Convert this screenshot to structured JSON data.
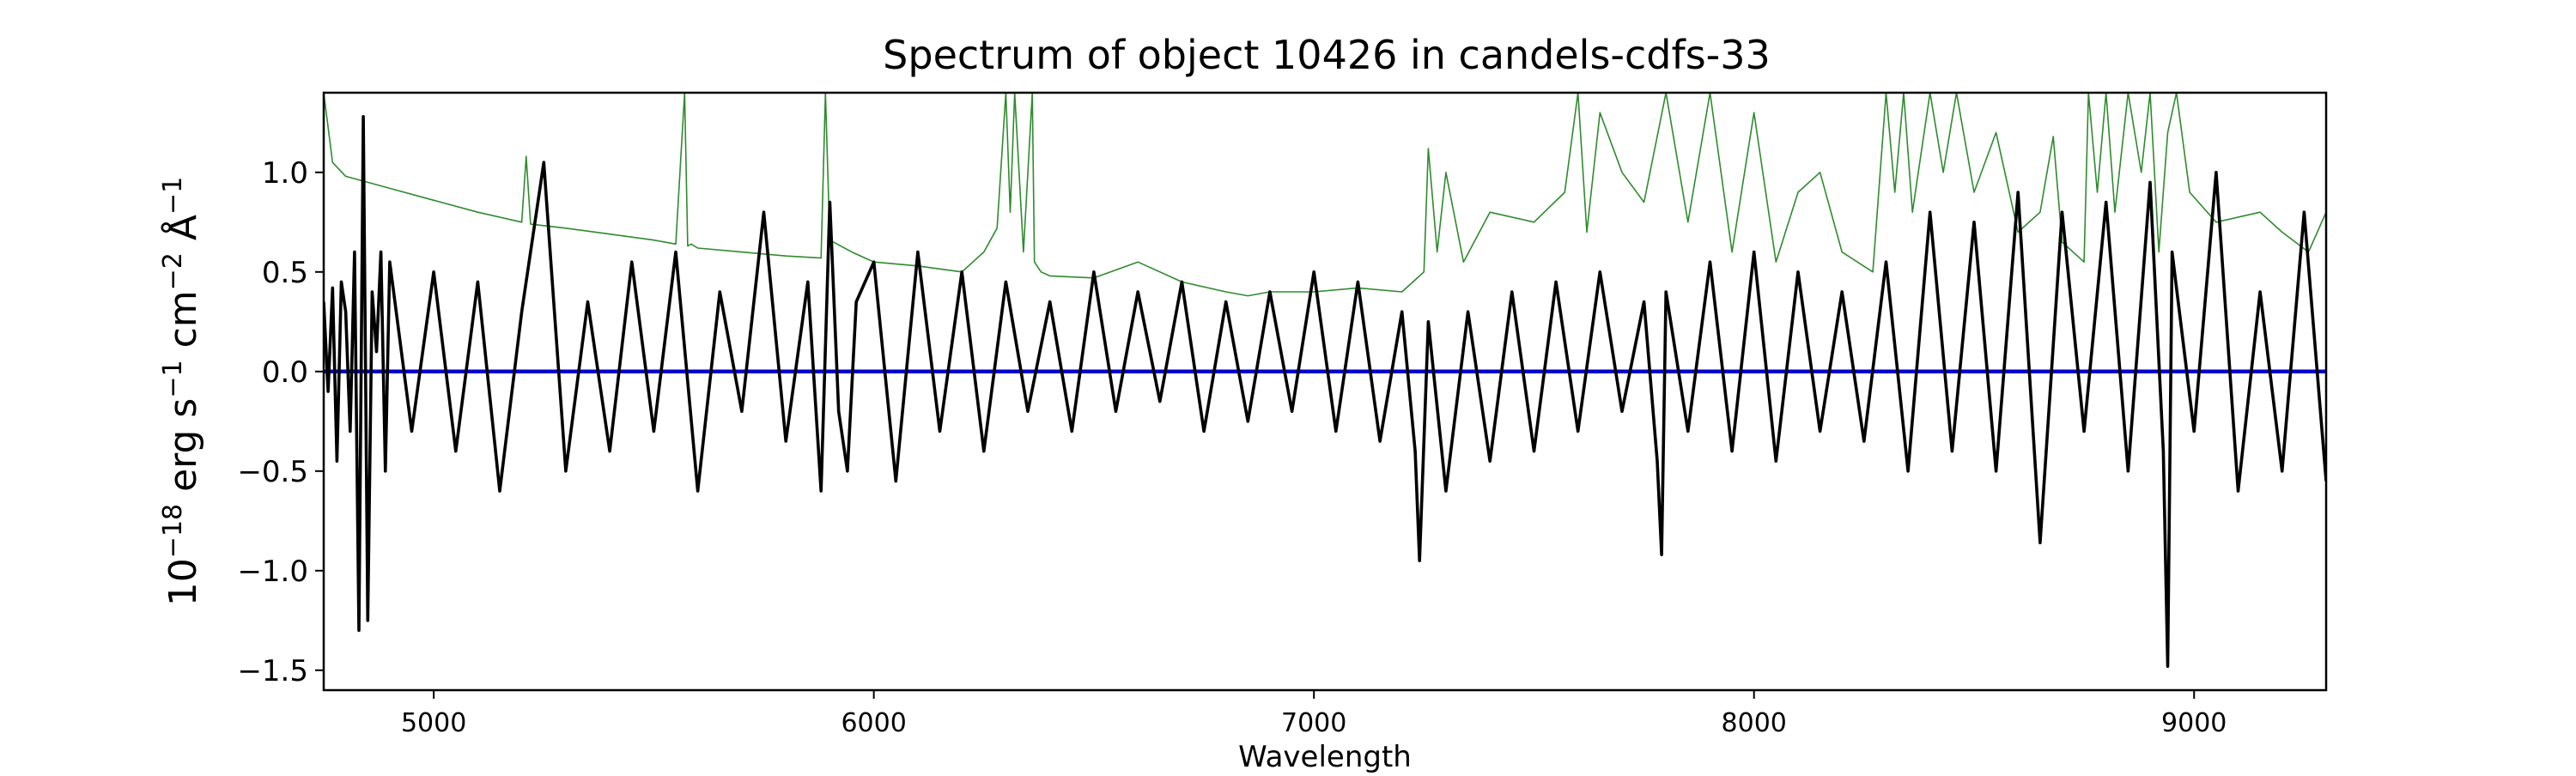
{
  "chart_data": {
    "type": "line",
    "title": "Spectrum of object 10426 in candels-cdfs-33",
    "xlabel": "Wavelength",
    "ylabel_base": "10",
    "ylabel_exp": "−18",
    "ylabel_units": [
      {
        "base": " erg s",
        "exp": "−1"
      },
      {
        "base": " cm",
        "exp": "−2"
      },
      {
        "base": " Å",
        "exp": "−1"
      }
    ],
    "xlim": [
      4750,
      9300
    ],
    "ylim": [
      -1.6,
      1.4
    ],
    "xticks": [
      5000,
      6000,
      7000,
      8000,
      9000
    ],
    "xtick_labels": [
      "5000",
      "6000",
      "7000",
      "8000",
      "9000"
    ],
    "yticks": [
      1.0,
      0.5,
      0.0,
      -0.5,
      -1.0,
      -1.5
    ],
    "ytick_labels": [
      "1.0",
      "0.5",
      "0.0",
      "−0.5",
      "−1.0",
      "−1.5"
    ],
    "grid": false,
    "series": [
      {
        "role": "error",
        "color": "#2e8b2e",
        "x": [
          4750,
          4770,
          4800,
          4850,
          4900,
          5000,
          5100,
          5200,
          5210,
          5220,
          5300,
          5400,
          5500,
          5550,
          5570,
          5577,
          5585,
          5600,
          5700,
          5800,
          5880,
          5890,
          5900,
          5950,
          6000,
          6100,
          6200,
          6250,
          6280,
          6300,
          6310,
          6320,
          6340,
          6360,
          6365,
          6380,
          6400,
          6500,
          6600,
          6700,
          6800,
          6850,
          6900,
          7000,
          7100,
          7200,
          7250,
          7260,
          7280,
          7300,
          7340,
          7400,
          7500,
          7570,
          7600,
          7620,
          7650,
          7700,
          7750,
          7800,
          7850,
          7900,
          7950,
          8000,
          8050,
          8100,
          8150,
          8200,
          8270,
          8300,
          8320,
          8340,
          8360,
          8400,
          8430,
          8460,
          8500,
          8550,
          8600,
          8650,
          8680,
          8700,
          8750,
          8760,
          8780,
          8800,
          8820,
          8850,
          8880,
          8900,
          8920,
          8940,
          8960,
          8990,
          9050,
          9150,
          9200,
          9260,
          9300
        ],
        "y": [
          1.4,
          1.05,
          0.98,
          0.95,
          0.92,
          0.86,
          0.8,
          0.75,
          1.08,
          0.74,
          0.72,
          0.69,
          0.66,
          0.64,
          1.4,
          0.63,
          0.64,
          0.62,
          0.6,
          0.58,
          0.57,
          1.4,
          0.66,
          0.6,
          0.55,
          0.53,
          0.5,
          0.6,
          0.72,
          1.4,
          0.8,
          1.4,
          0.6,
          1.4,
          0.55,
          0.5,
          0.48,
          0.47,
          0.55,
          0.45,
          0.4,
          0.38,
          0.4,
          0.4,
          0.42,
          0.4,
          0.5,
          1.12,
          0.6,
          1.0,
          0.55,
          0.8,
          0.75,
          0.9,
          1.4,
          0.7,
          1.3,
          1.0,
          0.85,
          1.4,
          0.75,
          1.4,
          0.6,
          1.3,
          0.55,
          0.9,
          1.0,
          0.6,
          0.5,
          1.4,
          0.9,
          1.4,
          0.8,
          1.4,
          1.0,
          1.4,
          0.9,
          1.2,
          0.7,
          0.8,
          1.18,
          0.65,
          0.55,
          1.4,
          0.9,
          1.4,
          0.8,
          1.4,
          1.0,
          1.4,
          0.6,
          1.2,
          1.4,
          0.9,
          0.75,
          0.8,
          0.7,
          0.6,
          0.8
        ]
      },
      {
        "role": "model",
        "color": "#0000cc",
        "x": [
          4750,
          9300
        ],
        "y": [
          0.0,
          0.0
        ]
      },
      {
        "role": "flux",
        "color": "#000000",
        "x": [
          4750,
          4760,
          4770,
          4780,
          4790,
          4800,
          4810,
          4820,
          4830,
          4840,
          4850,
          4860,
          4870,
          4880,
          4890,
          4900,
          4950,
          5000,
          5050,
          5100,
          5150,
          5200,
          5250,
          5300,
          5350,
          5400,
          5450,
          5500,
          5550,
          5600,
          5650,
          5700,
          5750,
          5800,
          5850,
          5880,
          5900,
          5920,
          5940,
          5960,
          6000,
          6050,
          6100,
          6150,
          6200,
          6250,
          6300,
          6350,
          6400,
          6450,
          6500,
          6550,
          6600,
          6650,
          6700,
          6750,
          6800,
          6850,
          6900,
          6950,
          7000,
          7050,
          7100,
          7150,
          7200,
          7230,
          7240,
          7260,
          7300,
          7350,
          7400,
          7450,
          7500,
          7550,
          7600,
          7650,
          7700,
          7750,
          7780,
          7790,
          7800,
          7850,
          7900,
          7950,
          8000,
          8050,
          8100,
          8150,
          8200,
          8250,
          8300,
          8350,
          8400,
          8450,
          8500,
          8550,
          8600,
          8650,
          8700,
          8750,
          8800,
          8850,
          8900,
          8930,
          8940,
          8950,
          9000,
          9050,
          9100,
          9150,
          9200,
          9250,
          9300
        ],
        "y": [
          0.35,
          -0.1,
          0.42,
          -0.45,
          0.45,
          0.3,
          -0.3,
          0.6,
          -1.3,
          1.28,
          -1.25,
          0.4,
          0.1,
          0.6,
          -0.5,
          0.55,
          -0.3,
          0.5,
          -0.4,
          0.45,
          -0.6,
          0.3,
          1.05,
          -0.5,
          0.35,
          -0.4,
          0.55,
          -0.3,
          0.6,
          -0.6,
          0.4,
          -0.2,
          0.8,
          -0.35,
          0.45,
          -0.6,
          0.85,
          -0.2,
          -0.5,
          0.35,
          0.55,
          -0.55,
          0.6,
          -0.3,
          0.5,
          -0.4,
          0.45,
          -0.2,
          0.35,
          -0.3,
          0.5,
          -0.2,
          0.4,
          -0.15,
          0.45,
          -0.3,
          0.35,
          -0.25,
          0.4,
          -0.2,
          0.5,
          -0.3,
          0.45,
          -0.35,
          0.3,
          -0.4,
          -0.95,
          0.25,
          -0.6,
          0.3,
          -0.45,
          0.4,
          -0.4,
          0.45,
          -0.3,
          0.5,
          -0.2,
          0.35,
          -0.45,
          -0.92,
          0.4,
          -0.3,
          0.55,
          -0.4,
          0.6,
          -0.45,
          0.5,
          -0.3,
          0.4,
          -0.35,
          0.55,
          -0.5,
          0.8,
          -0.4,
          0.75,
          -0.5,
          0.9,
          -0.86,
          0.8,
          -0.3,
          0.85,
          -0.5,
          0.95,
          -0.4,
          -1.48,
          0.6,
          -0.3,
          1.0,
          -0.6,
          0.4,
          -0.5,
          0.8,
          -0.55
        ]
      }
    ]
  }
}
